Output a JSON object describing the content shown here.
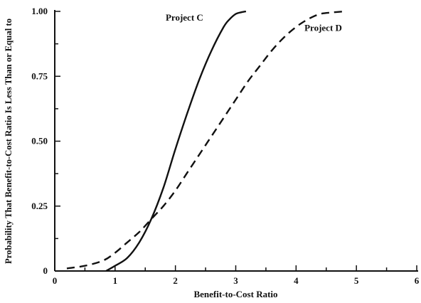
{
  "chart_data": {
    "type": "line",
    "title": "",
    "xlabel": "Benefit-to-Cost Ratio",
    "ylabel": "Probability That Benefit-to-Cost Ratio Is Less Than or Equal to",
    "xlim": [
      0,
      6
    ],
    "ylim": [
      0,
      1
    ],
    "x_ticks": [
      0,
      1,
      2,
      3,
      4,
      5,
      6
    ],
    "x_minor_ticks": [
      0.5,
      1.5,
      2.5,
      3.5,
      4.5,
      5.5
    ],
    "y_ticks": [
      0,
      0.25,
      0.5,
      0.75,
      1.0
    ],
    "y_minor_ticks": [
      0.125,
      0.375,
      0.625,
      0.875
    ],
    "x_tick_labels": [
      "0",
      "1",
      "2",
      "3",
      "4",
      "5",
      "6"
    ],
    "y_tick_labels": [
      "0",
      "0.25",
      "0.50",
      "0.75",
      "1.00"
    ],
    "grid": false,
    "legend": "none",
    "series": [
      {
        "name": "Project C",
        "style": "solid",
        "x": [
          0.85,
          1.0,
          1.2,
          1.4,
          1.6,
          1.8,
          2.0,
          2.2,
          2.4,
          2.6,
          2.8,
          2.9,
          3.0,
          3.1,
          3.17
        ],
        "y": [
          0.0,
          0.02,
          0.05,
          0.11,
          0.2,
          0.32,
          0.47,
          0.61,
          0.74,
          0.85,
          0.94,
          0.97,
          0.99,
          0.997,
          1.0
        ]
      },
      {
        "name": "Project D",
        "style": "dashed",
        "x": [
          0.2,
          0.5,
          0.8,
          1.0,
          1.2,
          1.4,
          1.6,
          1.8,
          2.0,
          2.2,
          2.4,
          2.6,
          2.8,
          3.0,
          3.2,
          3.4,
          3.6,
          3.8,
          4.0,
          4.2,
          4.4,
          4.6,
          4.8
        ],
        "y": [
          0.01,
          0.02,
          0.04,
          0.07,
          0.11,
          0.15,
          0.2,
          0.25,
          0.31,
          0.38,
          0.45,
          0.52,
          0.59,
          0.66,
          0.73,
          0.79,
          0.85,
          0.9,
          0.94,
          0.97,
          0.99,
          0.996,
          1.0
        ]
      }
    ],
    "annotations": [
      {
        "text": "Project C",
        "series": "Project C",
        "x": 2.15,
        "y": 0.965
      },
      {
        "text": "Project D",
        "series": "Project D",
        "x": 4.45,
        "y": 0.925
      }
    ],
    "colors": {
      "line": "#111111",
      "axis": "#111111",
      "background": "#ffffff"
    }
  }
}
